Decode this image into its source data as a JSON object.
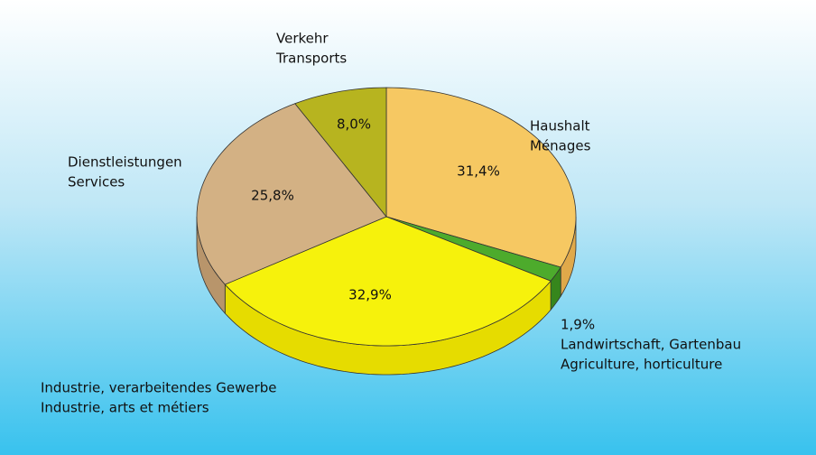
{
  "chart_data": {
    "type": "pie",
    "categories": [
      [
        "Haushalt",
        "Ménages"
      ],
      [
        "1,9%",
        "Landwirtschaft, Gartenbau",
        "Agriculture, horticulture"
      ],
      [
        "Industrie, verarbeitendes Gewerbe",
        "Industrie, arts et métiers"
      ],
      [
        "Dienstleistungen",
        "Services"
      ],
      [
        "Verkehr",
        "Transports"
      ]
    ],
    "values": [
      31.4,
      1.9,
      32.9,
      25.8,
      8.0
    ],
    "value_labels": [
      "31,4%",
      null,
      "32,9%",
      "25,8%",
      "8,0%"
    ],
    "colors": [
      "#f6c862",
      "#4dab2c",
      "#f6f20c",
      "#d3b184",
      "#b7b41f"
    ],
    "side_colors": [
      "#e0a94a",
      "#36861c",
      "#e6dc00",
      "#b8956b",
      "#98961a"
    ]
  }
}
